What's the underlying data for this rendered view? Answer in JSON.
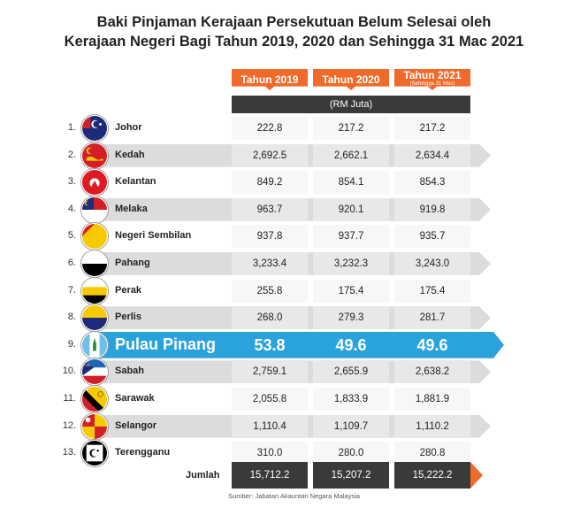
{
  "chart_data": {
    "type": "table",
    "title_line1": "Baki Pinjaman Kerajaan Persekutuan Belum Selesai oleh",
    "title_line2": "Kerajaan Negeri Bagi Tahun 2019, 2020 dan Sehingga 31 Mac 2021",
    "columns": [
      {
        "label": "Tahun 2019",
        "sub": ""
      },
      {
        "label": "Tahun 2020",
        "sub": ""
      },
      {
        "label": "Tahun 2021",
        "sub": "(Sehingga 31 Mac)"
      }
    ],
    "unit": "(RM Juta)",
    "rows": [
      {
        "no": "1.",
        "state": "Johor",
        "values": [
          "222.8",
          "217.2",
          "217.2"
        ]
      },
      {
        "no": "2.",
        "state": "Kedah",
        "values": [
          "2,692.5",
          "2,662.1",
          "2,634.4"
        ]
      },
      {
        "no": "3.",
        "state": "Kelantan",
        "values": [
          "849.2",
          "854.1",
          "854.3"
        ]
      },
      {
        "no": "4.",
        "state": "Melaka",
        "values": [
          "963.7",
          "920.1",
          "919.8"
        ]
      },
      {
        "no": "5.",
        "state": "Negeri Sembilan",
        "values": [
          "937.8",
          "937.7",
          "935.7"
        ]
      },
      {
        "no": "6.",
        "state": "Pahang",
        "values": [
          "3,233.4",
          "3,232.3",
          "3,243.0"
        ]
      },
      {
        "no": "7.",
        "state": "Perak",
        "values": [
          "255.8",
          "175.4",
          "175.4"
        ]
      },
      {
        "no": "8.",
        "state": "Perlis",
        "values": [
          "268.0",
          "279.3",
          "281.7"
        ]
      },
      {
        "no": "9.",
        "state": "Pulau Pinang",
        "values": [
          "53.8",
          "49.6",
          "49.6"
        ]
      },
      {
        "no": "10.",
        "state": "Sabah",
        "values": [
          "2,759.1",
          "2,655.9",
          "2,638.2"
        ]
      },
      {
        "no": "11.",
        "state": "Sarawak",
        "values": [
          "2,055.8",
          "1,833.9",
          "1,881.9"
        ]
      },
      {
        "no": "12.",
        "state": "Selangor",
        "values": [
          "1,110.4",
          "1,109.7",
          "1,110.2"
        ]
      },
      {
        "no": "13.",
        "state": "Terengganu",
        "values": [
          "310.0",
          "280.0",
          "280.8"
        ]
      }
    ],
    "highlight_state": "Pulau Pinang",
    "total_label": "Jumlah",
    "totals": [
      "15,712.2",
      "15,207.2",
      "15,222.2"
    ],
    "source": "Sumber: Jabatan Akauntan Negara Malaysia"
  },
  "colors": {
    "accent_orange": "#ef6a2b",
    "highlight_blue": "#2aa3dc",
    "dark_band": "#3a3a3a"
  }
}
